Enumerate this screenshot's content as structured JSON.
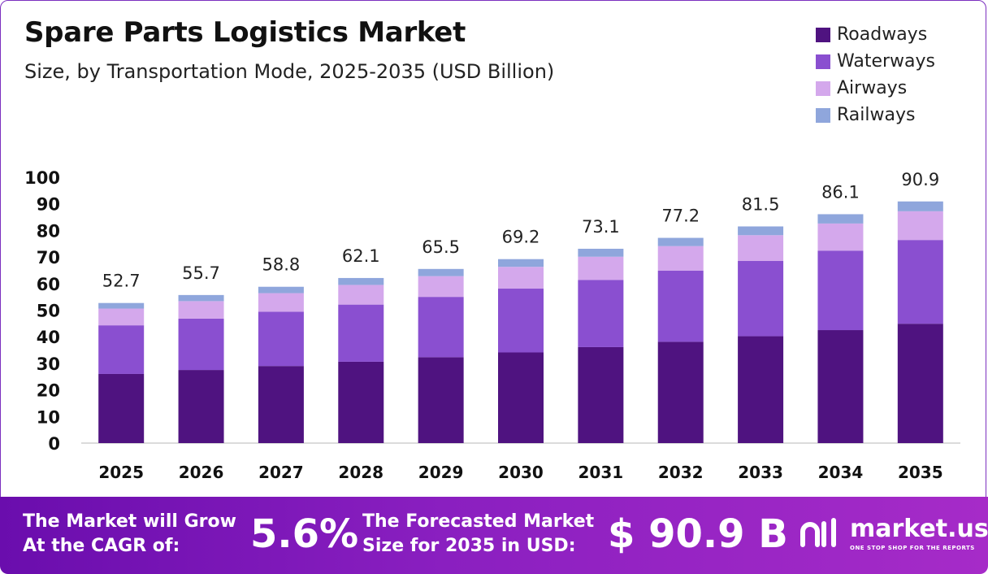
{
  "chart_data": {
    "type": "bar",
    "stacked": true,
    "title": "Spare Parts Logistics Market",
    "subtitle": "Size, by Transportation Mode, 2025-2035 (USD Billion)",
    "categories": [
      "2025",
      "2026",
      "2027",
      "2028",
      "2029",
      "2030",
      "2031",
      "2032",
      "2033",
      "2034",
      "2035"
    ],
    "totals": [
      "52.7",
      "55.7",
      "58.8",
      "62.1",
      "65.5",
      "69.2",
      "73.1",
      "77.2",
      "81.5",
      "86.1",
      "90.9"
    ],
    "series": [
      {
        "name": "Roadways",
        "color": "#4f1380",
        "values": [
          26.0,
          27.5,
          29.0,
          30.6,
          32.3,
          34.1,
          36.1,
          38.1,
          40.2,
          42.5,
          44.9
        ]
      },
      {
        "name": "Waterways",
        "color": "#8a4fd0",
        "values": [
          18.3,
          19.3,
          20.4,
          21.5,
          22.7,
          24.0,
          25.3,
          26.8,
          28.3,
          29.9,
          31.5
        ]
      },
      {
        "name": "Airways",
        "color": "#d4a8ec",
        "values": [
          6.3,
          6.6,
          7.0,
          7.4,
          7.8,
          8.2,
          8.7,
          9.2,
          9.7,
          10.2,
          10.8
        ]
      },
      {
        "name": "Railways",
        "color": "#8fa6dc",
        "values": [
          2.1,
          2.3,
          2.4,
          2.6,
          2.7,
          2.9,
          3.0,
          3.1,
          3.3,
          3.5,
          3.7
        ]
      }
    ],
    "yticks": [
      "0",
      "10",
      "20",
      "30",
      "40",
      "50",
      "60",
      "70",
      "80",
      "90",
      "100"
    ],
    "ylim": [
      0,
      100
    ],
    "legend_position": "top-right"
  },
  "banner": {
    "cagr_line1": "The Market will Grow",
    "cagr_line2": "At the CAGR of:",
    "cagr_value": "5.6%",
    "forecast_line1": "The Forecasted Market",
    "forecast_line2": "Size for 2035 in USD:",
    "forecast_value": "$ 90.9 B",
    "logo_name": "market.us",
    "logo_tagline": "ONE STOP SHOP FOR THE REPORTS"
  }
}
